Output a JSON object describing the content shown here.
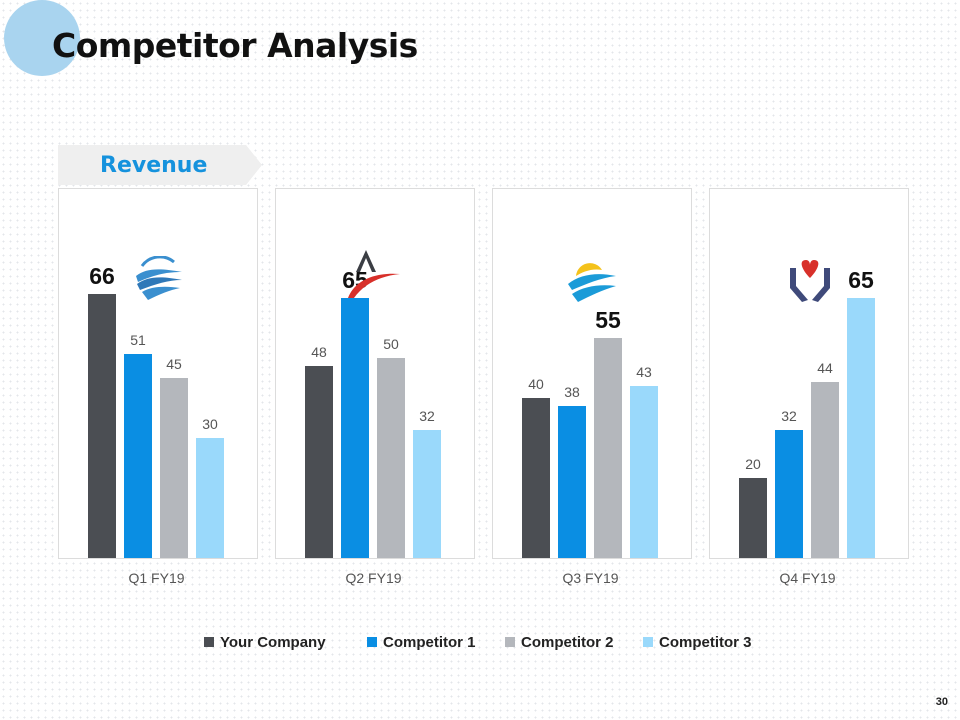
{
  "page": {
    "title": "Competitor Analysis",
    "section_label": "Revenue",
    "page_number": "30"
  },
  "colors": {
    "your_company": "#4b4e53",
    "competitor_1": "#0a8ee3",
    "competitor_2": "#b4b7bc",
    "competitor_3": "#9ad9fb"
  },
  "logos": [
    {
      "quarter": "Q1 FY19",
      "icon": "blue-waves-globe-icon"
    },
    {
      "quarter": "Q2 FY19",
      "icon": "red-swoosh-a-icon"
    },
    {
      "quarter": "Q3 FY19",
      "icon": "sun-waves-icon"
    },
    {
      "quarter": "Q4 FY19",
      "icon": "hands-heart-icon"
    }
  ],
  "chart_data": {
    "type": "bar",
    "title": "Revenue",
    "categories": [
      "Q1 FY19",
      "Q2 FY19",
      "Q3 FY19",
      "Q4 FY19"
    ],
    "series": [
      {
        "name": "Your Company",
        "values": [
          66,
          48,
          40,
          20
        ]
      },
      {
        "name": "Competitor 1",
        "values": [
          51,
          65,
          38,
          32
        ]
      },
      {
        "name": "Competitor 2",
        "values": [
          45,
          50,
          55,
          44
        ]
      },
      {
        "name": "Competitor 3",
        "values": [
          30,
          32,
          43,
          65
        ]
      }
    ],
    "highlighted": [
      {
        "category": "Q1 FY19",
        "series": "Your Company"
      },
      {
        "category": "Q2 FY19",
        "series": "Competitor 1"
      },
      {
        "category": "Q3 FY19",
        "series": "Competitor 2"
      },
      {
        "category": "Q4 FY19",
        "series": "Competitor 3"
      }
    ],
    "ylim": [
      0,
      100
    ],
    "xlabel": "",
    "ylabel": "",
    "legend": "bottom-center",
    "grid": false
  }
}
